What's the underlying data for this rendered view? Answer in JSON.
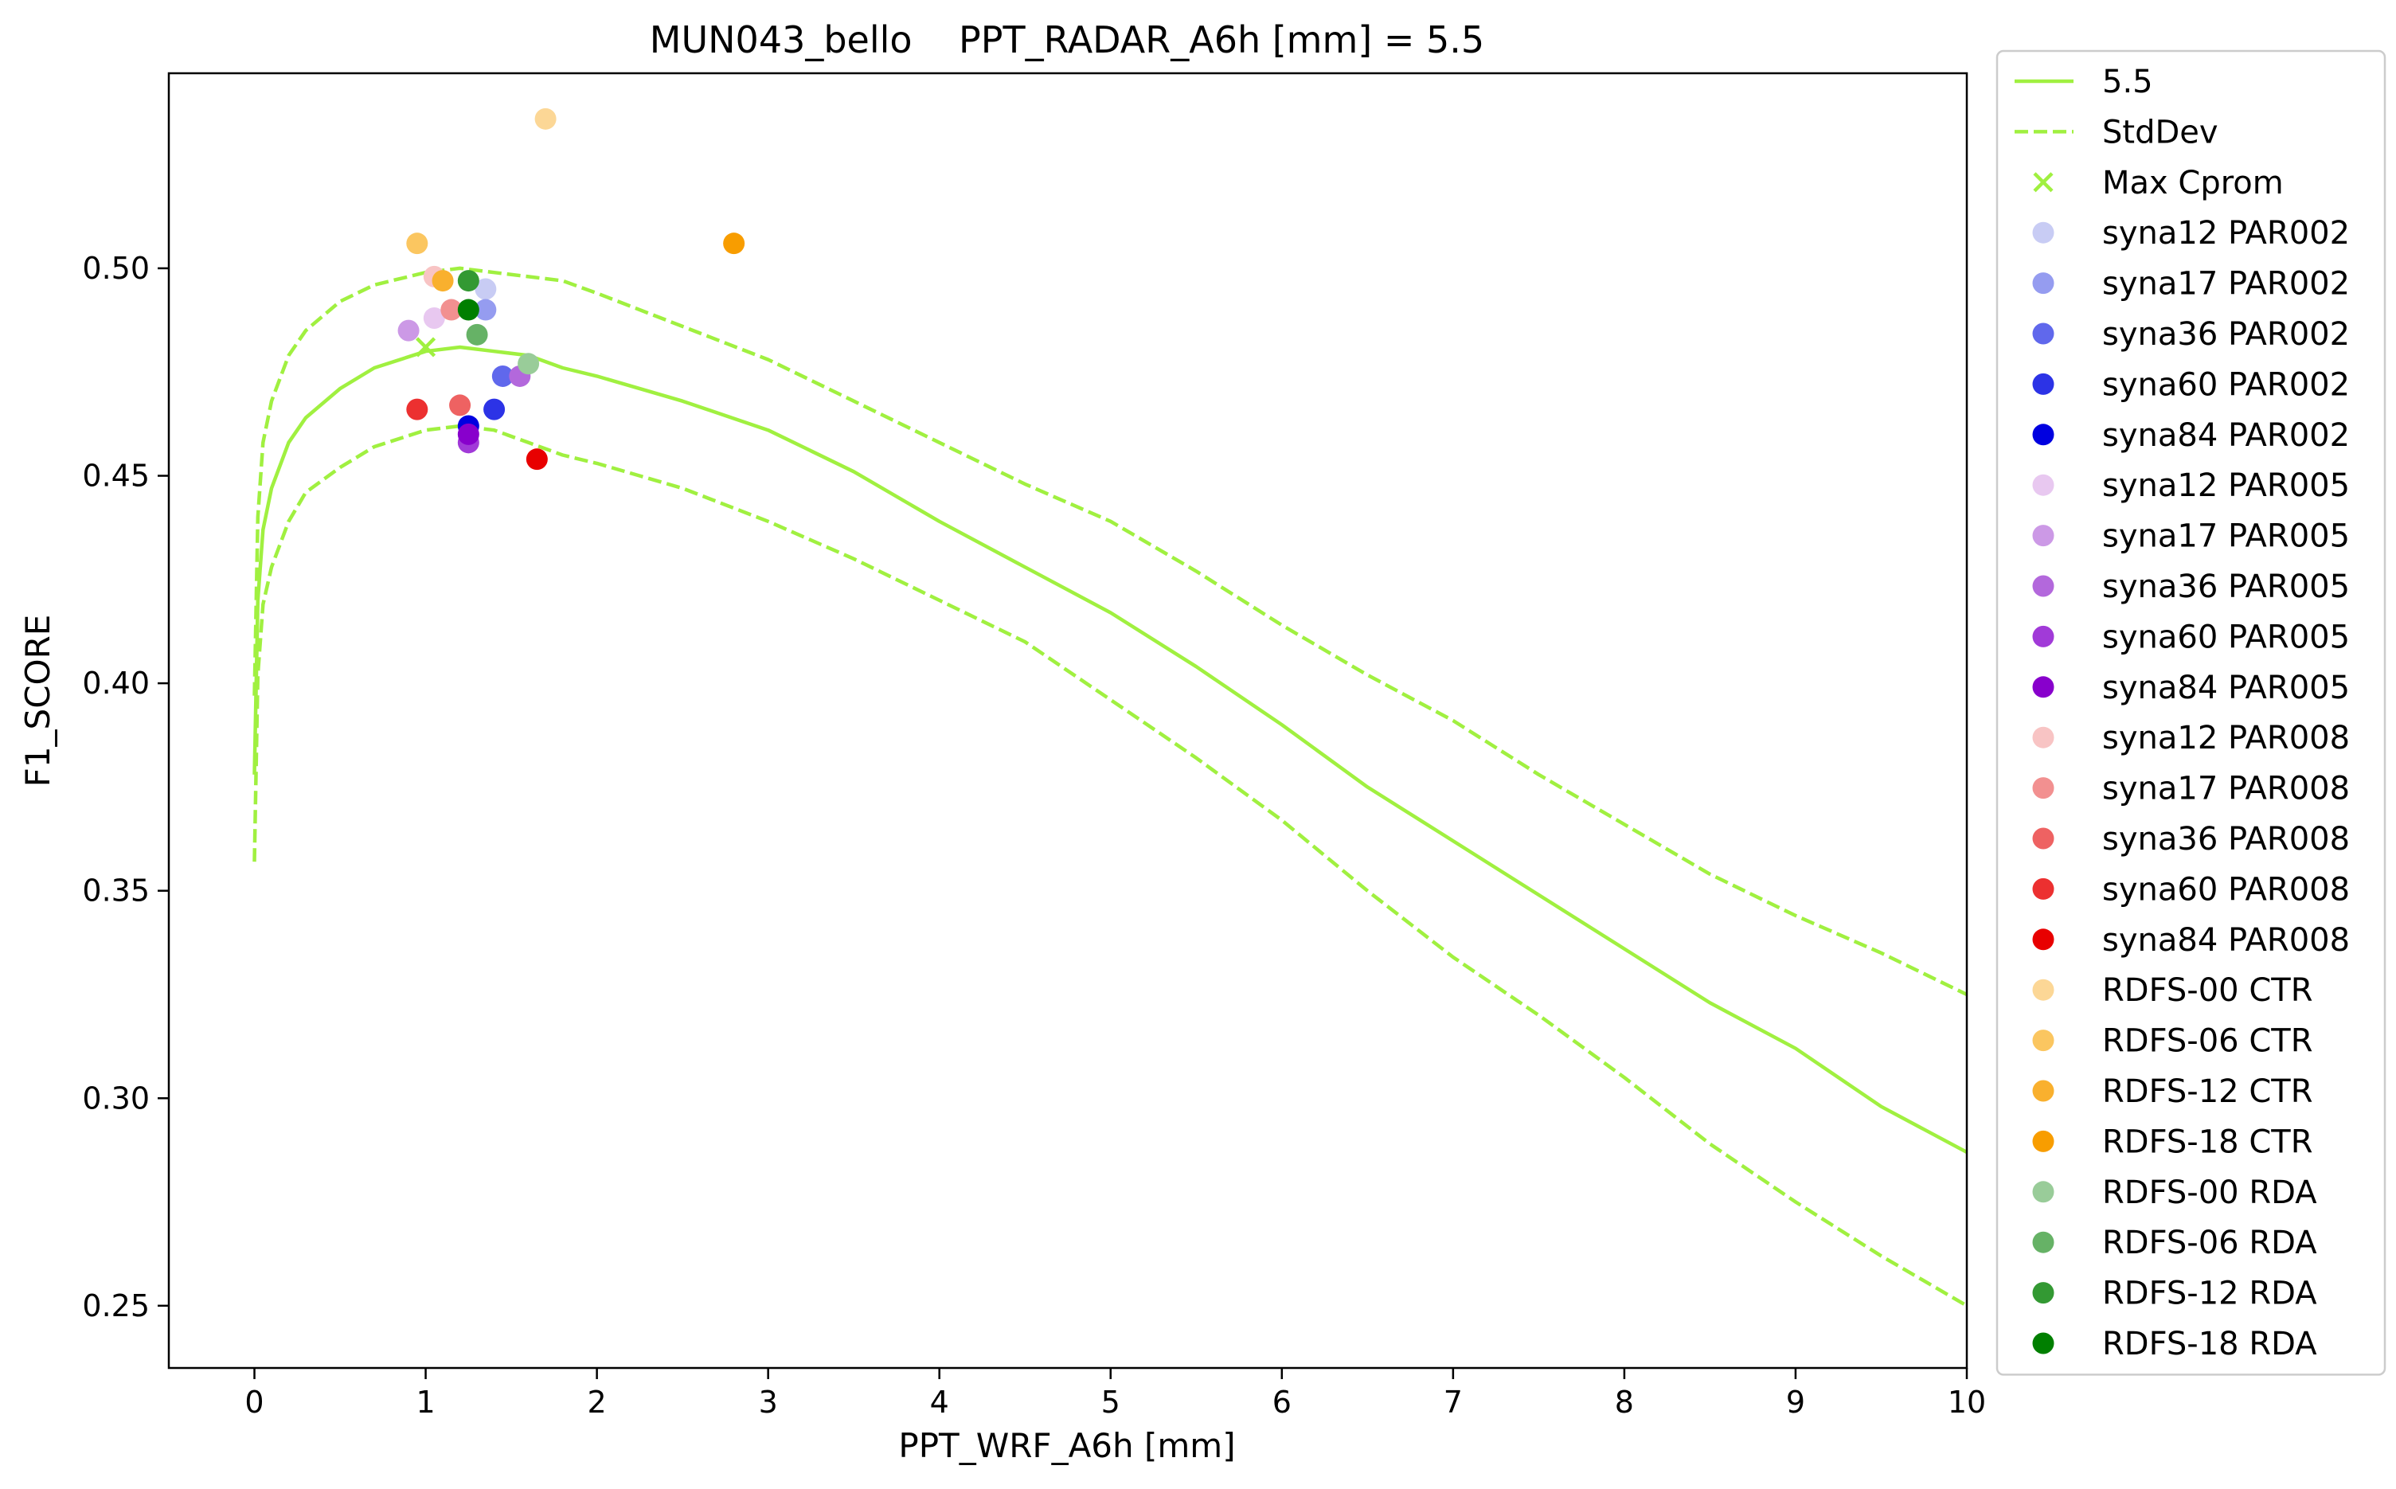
{
  "chart_data": {
    "type": "scatter",
    "title": "MUN043_bello    PPT_RADAR_A6h [mm] = 5.5",
    "xlabel": "PPT_WRF_A6h [mm]",
    "ylabel": "F1_SCORE",
    "xlim": [
      -0.5,
      10
    ],
    "ylim": [
      0.235,
      0.547
    ],
    "xticks": [
      0,
      1,
      2,
      3,
      4,
      5,
      6,
      7,
      8,
      9,
      10
    ],
    "yticks": [
      0.25,
      0.3,
      0.35,
      0.4,
      0.45,
      0.5
    ],
    "ytick_labels": [
      "0.25",
      "0.30",
      "0.35",
      "0.40",
      "0.45",
      "0.50"
    ],
    "grid": false,
    "legend_placement": "outside right",
    "line_color": "#a0f040",
    "lines": [
      {
        "name": "5.5",
        "style": "solid",
        "x": [
          0.0,
          0.02,
          0.05,
          0.1,
          0.2,
          0.3,
          0.5,
          0.7,
          1.0,
          1.2,
          1.4,
          1.6,
          1.8,
          2.0,
          2.5,
          3.0,
          3.5,
          4.0,
          4.5,
          5.0,
          5.5,
          6.0,
          6.5,
          7.0,
          7.5,
          8.0,
          8.5,
          9.0,
          9.5,
          10.0
        ],
        "y": [
          0.378,
          0.42,
          0.437,
          0.447,
          0.458,
          0.464,
          0.471,
          0.476,
          0.48,
          0.481,
          0.48,
          0.479,
          0.476,
          0.474,
          0.468,
          0.461,
          0.451,
          0.439,
          0.428,
          0.417,
          0.404,
          0.39,
          0.375,
          0.362,
          0.349,
          0.336,
          0.323,
          0.312,
          0.298,
          0.287
        ]
      },
      {
        "name": "StdDev",
        "style": "dashed",
        "x": [
          0.0,
          0.02,
          0.05,
          0.1,
          0.2,
          0.3,
          0.5,
          0.7,
          1.0,
          1.2,
          1.4,
          1.6,
          1.8,
          2.0,
          2.5,
          3.0,
          3.5,
          4.0,
          4.5,
          5.0,
          5.5,
          6.0,
          6.5,
          7.0,
          7.5,
          8.0,
          8.5,
          9.0,
          9.5,
          10.0
        ],
        "y": [
          0.397,
          0.44,
          0.458,
          0.468,
          0.479,
          0.485,
          0.492,
          0.496,
          0.499,
          0.5,
          0.499,
          0.498,
          0.497,
          0.494,
          0.486,
          0.478,
          0.468,
          0.458,
          0.448,
          0.439,
          0.427,
          0.414,
          0.402,
          0.391,
          0.378,
          0.366,
          0.354,
          0.344,
          0.335,
          0.325
        ]
      },
      {
        "name": "",
        "style": "dashed",
        "x": [
          0.0,
          0.02,
          0.05,
          0.1,
          0.2,
          0.3,
          0.5,
          0.7,
          1.0,
          1.2,
          1.4,
          1.6,
          1.8,
          2.0,
          2.5,
          3.0,
          3.5,
          4.0,
          4.5,
          5.0,
          5.5,
          6.0,
          6.5,
          7.0,
          7.5,
          8.0,
          8.5,
          9.0,
          9.5,
          10.0
        ],
        "y": [
          0.357,
          0.402,
          0.419,
          0.428,
          0.439,
          0.446,
          0.452,
          0.457,
          0.461,
          0.462,
          0.461,
          0.458,
          0.455,
          0.453,
          0.447,
          0.439,
          0.43,
          0.42,
          0.41,
          0.396,
          0.382,
          0.367,
          0.35,
          0.334,
          0.32,
          0.305,
          0.289,
          0.275,
          0.262,
          0.25
        ]
      }
    ],
    "max_cprom": {
      "name": "Max Cprom",
      "x": 1.0,
      "y": 0.481
    },
    "series": [
      {
        "name": "syna12 PAR002",
        "color": "#c8ccf4",
        "points": [
          [
            1.35,
            0.495
          ]
        ]
      },
      {
        "name": "syna17 PAR002",
        "color": "#959cf0",
        "points": [
          [
            1.35,
            0.49
          ]
        ]
      },
      {
        "name": "syna36 PAR002",
        "color": "#6068ec",
        "points": [
          [
            1.45,
            0.474
          ]
        ]
      },
      {
        "name": "syna60 PAR002",
        "color": "#2c33e6",
        "points": [
          [
            1.4,
            0.466
          ]
        ]
      },
      {
        "name": "syna84 PAR002",
        "color": "#0000e0",
        "points": [
          [
            1.25,
            0.462
          ]
        ]
      },
      {
        "name": "syna12 PAR005",
        "color": "#e8c8f0",
        "points": [
          [
            1.05,
            0.488
          ]
        ]
      },
      {
        "name": "syna17 PAR005",
        "color": "#cc99e6",
        "points": [
          [
            0.9,
            0.485
          ]
        ]
      },
      {
        "name": "syna36 PAR005",
        "color": "#b368dc",
        "points": [
          [
            1.55,
            0.474
          ]
        ]
      },
      {
        "name": "syna60 PAR005",
        "color": "#a13ad8",
        "points": [
          [
            1.25,
            0.458
          ]
        ]
      },
      {
        "name": "syna84 PAR005",
        "color": "#8800cc",
        "points": [
          [
            1.25,
            0.46
          ]
        ]
      },
      {
        "name": "syna12 PAR008",
        "color": "#f8c4c4",
        "points": [
          [
            1.05,
            0.498
          ]
        ]
      },
      {
        "name": "syna17 PAR008",
        "color": "#f29090",
        "points": [
          [
            1.15,
            0.49
          ]
        ]
      },
      {
        "name": "syna36 PAR008",
        "color": "#ee6262",
        "points": [
          [
            1.2,
            0.467
          ]
        ]
      },
      {
        "name": "syna60 PAR008",
        "color": "#ec3030",
        "points": [
          [
            0.95,
            0.466
          ]
        ]
      },
      {
        "name": "syna84 PAR008",
        "color": "#e80000",
        "points": [
          [
            1.65,
            0.454
          ]
        ]
      },
      {
        "name": "RDFS-00 CTR",
        "color": "#fcd796",
        "points": [
          [
            1.7,
            0.536
          ]
        ]
      },
      {
        "name": "RDFS-06 CTR",
        "color": "#fbc660",
        "points": [
          [
            0.95,
            0.506
          ]
        ]
      },
      {
        "name": "RDFS-12 CTR",
        "color": "#f9b02e",
        "points": [
          [
            1.1,
            0.497
          ]
        ]
      },
      {
        "name": "RDFS-18 CTR",
        "color": "#f89d00",
        "points": [
          [
            2.8,
            0.506
          ]
        ]
      },
      {
        "name": "RDFS-00 RDA",
        "color": "#99cc99",
        "points": [
          [
            1.6,
            0.477
          ]
        ]
      },
      {
        "name": "RDFS-06 RDA",
        "color": "#66b266",
        "points": [
          [
            1.3,
            0.484
          ]
        ]
      },
      {
        "name": "RDFS-12 RDA",
        "color": "#339933",
        "points": [
          [
            1.25,
            0.497
          ]
        ]
      },
      {
        "name": "RDFS-18 RDA",
        "color": "#007f00",
        "points": [
          [
            1.25,
            0.49
          ]
        ]
      }
    ]
  }
}
